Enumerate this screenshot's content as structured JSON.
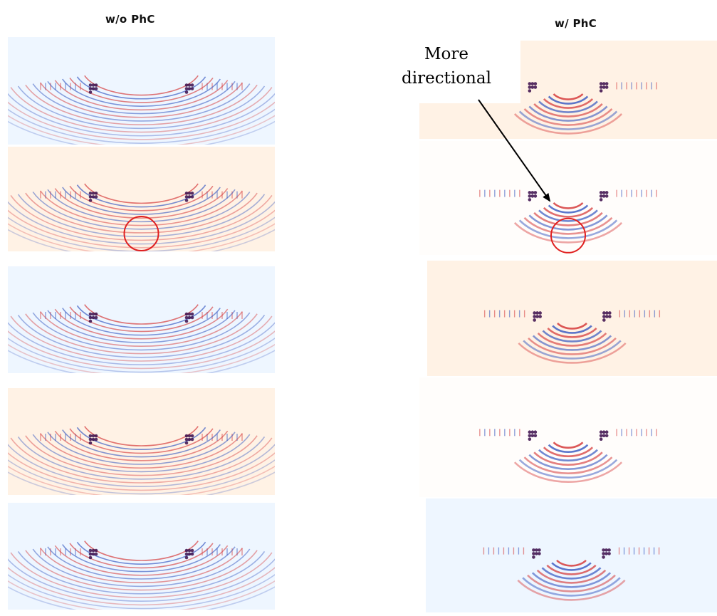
{
  "columns": {
    "left_title": "w/o PhC",
    "right_title": "w/ PhC"
  },
  "annotation": {
    "line1": "More",
    "line2": "directional"
  },
  "colors": {
    "blue_bg": "#eef6ff",
    "peach_bg": "#fff2e5",
    "wave_red": "#d63c3c",
    "wave_blue": "#3355c0",
    "source_dark": "#3a0c4a",
    "circle_red": "#e02020",
    "arrow": "#000000"
  },
  "panels": [
    {
      "id": "left-1",
      "column": "w/o PhC",
      "background": "blue",
      "directional": false,
      "highlight_circle": false
    },
    {
      "id": "left-2",
      "column": "w/o PhC",
      "background": "peach",
      "directional": false,
      "highlight_circle": true
    },
    {
      "id": "left-3",
      "column": "w/o PhC",
      "background": "blue",
      "directional": false,
      "highlight_circle": false
    },
    {
      "id": "left-4",
      "column": "w/o PhC",
      "background": "peach",
      "directional": false,
      "highlight_circle": false
    },
    {
      "id": "left-5",
      "column": "w/o PhC",
      "background": "blue",
      "directional": false,
      "highlight_circle": false
    },
    {
      "id": "right-1",
      "column": "w/ PhC",
      "background": "peach",
      "directional": true,
      "highlight_circle": false
    },
    {
      "id": "right-2",
      "column": "w/ PhC",
      "background": "white",
      "directional": true,
      "highlight_circle": true
    },
    {
      "id": "right-3",
      "column": "w/ PhC",
      "background": "peach",
      "directional": true,
      "highlight_circle": false
    },
    {
      "id": "right-4",
      "column": "w/ PhC",
      "background": "white",
      "directional": true,
      "highlight_circle": false
    },
    {
      "id": "right-5",
      "column": "w/ PhC",
      "background": "blue",
      "directional": true,
      "highlight_circle": false
    }
  ]
}
